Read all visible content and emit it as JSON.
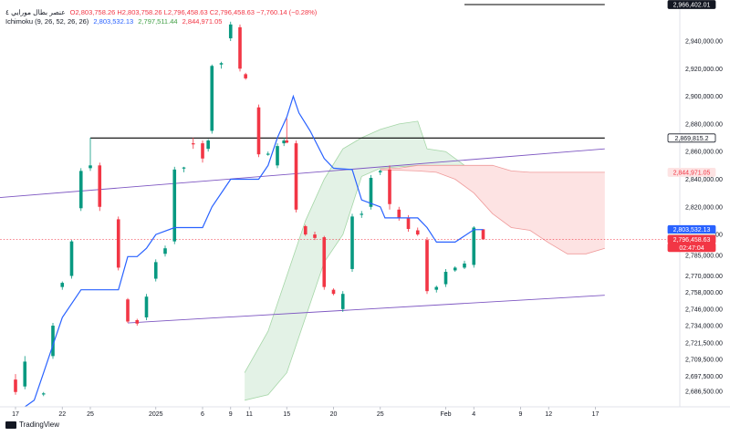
{
  "header": {
    "line1_title": "عنصر بطال مورايي ٤",
    "line1_values": "O2,803,758.26  H2,803,758.26  L2,796,458.63  C2,796,458.63  −7,760.14 (−0.28%)",
    "line2_name": "Ichimoku (9, 26, 52, 26, 26)",
    "line2_v1": "2,803,532.13",
    "line2_v2": "2,797,511.44",
    "line2_v3": "2,844,971.05"
  },
  "branding": {
    "logo_text": "TradingView"
  },
  "colors": {
    "up": "#089981",
    "down": "#f23645",
    "base_line": "#2962ff",
    "cloud_green": "#e3f2e6",
    "cloud_red": "#fde3e3",
    "trend_line": "#7e57c2",
    "horizontal": "#000000"
  },
  "chart_data": {
    "type": "candlestick",
    "ylim": [
      2680000,
      2970000
    ],
    "y_ticks": [
      2686500,
      2697500,
      2709500,
      2721500,
      2734000,
      2746000,
      2758000,
      2770000,
      2785000,
      2800000,
      2820000,
      2840000,
      2860000,
      2880000,
      2900000,
      2920000,
      2940000
    ],
    "y_tick_labels": [
      "2,686,500.00",
      "2,697,500.00",
      "2,709,500.00",
      "2,721,500.00",
      "2,734,000.00",
      "2,746,000.00",
      "2,758,000.00",
      "2,770,000.00",
      "2,785,000.00",
      "2,800,000.00",
      "2,820,000.00",
      "2,840,000.00",
      "2,860,000.00",
      "2,880,000.00",
      "2,900,000.00",
      "2,920,000.00",
      "2,940,000.00"
    ],
    "x_ticks": [
      {
        "label": "17",
        "day": 17
      },
      {
        "label": "22",
        "day": 22
      },
      {
        "label": "25",
        "day": 25
      },
      {
        "label": "2025",
        "day": 32
      },
      {
        "label": "6",
        "day": 37
      },
      {
        "label": "9",
        "day": 40
      },
      {
        "label": "11",
        "day": 42
      },
      {
        "label": "15",
        "day": 46
      },
      {
        "label": "20",
        "day": 51
      },
      {
        "label": "25",
        "day": 56
      },
      {
        "label": "Feb",
        "day": 63
      },
      {
        "label": "4",
        "day": 66
      },
      {
        "label": "9",
        "day": 71
      },
      {
        "label": "12",
        "day": 74
      },
      {
        "label": "17",
        "day": 79
      }
    ],
    "price_tags": [
      {
        "label": "2,966,402.01",
        "value": 2966402,
        "bg": "#131722",
        "fg": "#ffffff",
        "border": "#131722"
      },
      {
        "label": "2,869,815.2",
        "value": 2869815,
        "bg": "#ffffff",
        "fg": "#131722",
        "border": "#131722"
      },
      {
        "label": "2,844,971.05",
        "value": 2844971,
        "bg": "#fde3e3",
        "fg": "#f23645",
        "border": "#fde3e3"
      },
      {
        "label": "2,803,532.13",
        "value": 2803532,
        "bg": "#2962ff",
        "fg": "#ffffff",
        "border": "#2962ff"
      },
      {
        "label": "2,797,511.44",
        "value": 2797511,
        "bg": "#e3f2e6",
        "fg": "#131722",
        "border": "#e3f2e6"
      },
      {
        "label": "2,796,458.63",
        "value": 2796458,
        "bg": "#f23645",
        "fg": "#ffffff",
        "border": "#f23645"
      },
      {
        "label": "02:47:04",
        "value": 2790600,
        "bg": "#f23645",
        "fg": "#ffffff",
        "border": "#f23645"
      }
    ],
    "candles": [
      {
        "d": 17,
        "o": 2695000,
        "h": 2699000,
        "l": 2684000,
        "c": 2686000
      },
      {
        "d": 18,
        "o": 2690000,
        "h": 2712000,
        "l": 2688000,
        "c": 2708000
      },
      {
        "d": 20,
        "o": 2684500,
        "h": 2686000,
        "l": 2683000,
        "c": 2685000
      },
      {
        "d": 21,
        "o": 2712000,
        "h": 2736000,
        "l": 2710000,
        "c": 2734000
      },
      {
        "d": 22,
        "o": 2762000,
        "h": 2766000,
        "l": 2760000,
        "c": 2765000
      },
      {
        "d": 23,
        "o": 2770000,
        "h": 2796000,
        "l": 2768000,
        "c": 2795000
      },
      {
        "d": 24,
        "o": 2819000,
        "h": 2848000,
        "l": 2817000,
        "c": 2846000
      },
      {
        "d": 25,
        "o": 2848000,
        "h": 2870000,
        "l": 2846000,
        "c": 2850000
      },
      {
        "d": 26,
        "o": 2850000,
        "h": 2852000,
        "l": 2817000,
        "c": 2820000
      },
      {
        "d": 28,
        "o": 2811000,
        "h": 2813000,
        "l": 2774000,
        "c": 2776000
      },
      {
        "d": 29,
        "o": 2753000,
        "h": 2754000,
        "l": 2736000,
        "c": 2737000
      },
      {
        "d": 30,
        "o": 2738000,
        "h": 2739000,
        "l": 2734000,
        "c": 2735500
      },
      {
        "d": 31,
        "o": 2740000,
        "h": 2757000,
        "l": 2738000,
        "c": 2755000
      },
      {
        "d": 32,
        "o": 2768000,
        "h": 2782000,
        "l": 2766000,
        "c": 2780000
      },
      {
        "d": 33,
        "o": 2786000,
        "h": 2792000,
        "l": 2784000,
        "c": 2790000
      },
      {
        "d": 34,
        "o": 2795000,
        "h": 2849000,
        "l": 2793000,
        "c": 2847000
      },
      {
        "d": 35,
        "o": 2848000,
        "h": 2849000,
        "l": 2845000,
        "c": 2848500
      },
      {
        "d": 36,
        "o": 2866000,
        "h": 2870000,
        "l": 2862000,
        "c": 2865500
      },
      {
        "d": 37,
        "o": 2866000,
        "h": 2868000,
        "l": 2852000,
        "c": 2855000
      },
      {
        "d": 37.6,
        "o": 2862000,
        "h": 2869000,
        "l": 2860000,
        "c": 2868000
      },
      {
        "d": 38,
        "o": 2875000,
        "h": 2923000,
        "l": 2873000,
        "c": 2922000
      },
      {
        "d": 39,
        "o": 2923000,
        "h": 2925000,
        "l": 2920000,
        "c": 2924000
      },
      {
        "d": 40,
        "o": 2942000,
        "h": 2954000,
        "l": 2940000,
        "c": 2952000
      },
      {
        "d": 41,
        "o": 2950000,
        "h": 2952000,
        "l": 2918000,
        "c": 2920000
      },
      {
        "d": 41.6,
        "o": 2916000,
        "h": 2917000,
        "l": 2912000,
        "c": 2913000
      },
      {
        "d": 43,
        "o": 2892000,
        "h": 2894000,
        "l": 2856000,
        "c": 2858000
      },
      {
        "d": 44,
        "o": 2858000,
        "h": 2860000,
        "l": 2857000,
        "c": 2858500
      },
      {
        "d": 45,
        "o": 2850000,
        "h": 2866000,
        "l": 2848000,
        "c": 2864000
      },
      {
        "d": 45.7,
        "o": 2866000,
        "h": 2870000,
        "l": 2864000,
        "c": 2868000
      },
      {
        "d": 46,
        "o": 2868000,
        "h": 2884000,
        "l": 2866000,
        "c": 2866500
      },
      {
        "d": 47,
        "o": 2866000,
        "h": 2868000,
        "l": 2816000,
        "c": 2818000
      },
      {
        "d": 48,
        "o": 2806000,
        "h": 2807000,
        "l": 2799000,
        "c": 2800000
      },
      {
        "d": 49,
        "o": 2800000,
        "h": 2802000,
        "l": 2796000,
        "c": 2797500
      },
      {
        "d": 50,
        "o": 2798000,
        "h": 2799000,
        "l": 2760000,
        "c": 2762000
      },
      {
        "d": 51,
        "o": 2760000,
        "h": 2761000,
        "l": 2756000,
        "c": 2757000
      },
      {
        "d": 52,
        "o": 2746000,
        "h": 2759000,
        "l": 2744000,
        "c": 2757000
      },
      {
        "d": 53,
        "o": 2775000,
        "h": 2815000,
        "l": 2773000,
        "c": 2813000
      },
      {
        "d": 54,
        "o": 2815000,
        "h": 2817000,
        "l": 2812000,
        "c": 2815000
      },
      {
        "d": 55,
        "o": 2820000,
        "h": 2843000,
        "l": 2818000,
        "c": 2841000
      },
      {
        "d": 56,
        "o": 2845000,
        "h": 2847000,
        "l": 2843000,
        "c": 2846000
      },
      {
        "d": 57,
        "o": 2847000,
        "h": 2850000,
        "l": 2818000,
        "c": 2822000
      },
      {
        "d": 58,
        "o": 2818000,
        "h": 2820000,
        "l": 2810000,
        "c": 2812000
      },
      {
        "d": 59,
        "o": 2812000,
        "h": 2814000,
        "l": 2802000,
        "c": 2804000
      },
      {
        "d": 60,
        "o": 2803000,
        "h": 2805000,
        "l": 2799000,
        "c": 2800000
      },
      {
        "d": 61,
        "o": 2796000,
        "h": 2798000,
        "l": 2757000,
        "c": 2759000
      },
      {
        "d": 62,
        "o": 2760000,
        "h": 2763000,
        "l": 2758000,
        "c": 2762000
      },
      {
        "d": 63,
        "o": 2764000,
        "h": 2775000,
        "l": 2762000,
        "c": 2773000
      },
      {
        "d": 64,
        "o": 2774000,
        "h": 2777000,
        "l": 2773000,
        "c": 2776000
      },
      {
        "d": 65,
        "o": 2776000,
        "h": 2781000,
        "l": 2775000,
        "c": 2779000
      },
      {
        "d": 66,
        "o": 2778000,
        "h": 2806000,
        "l": 2776000,
        "c": 2805000
      },
      {
        "d": 67,
        "o": 2803758,
        "h": 2803758,
        "l": 2796458,
        "c": 2796458
      }
    ],
    "base_line": [
      {
        "d": 18,
        "v": 2660000
      },
      {
        "d": 19,
        "v": 2680000
      },
      {
        "d": 20,
        "v": 2700000
      },
      {
        "d": 21,
        "v": 2720000
      },
      {
        "d": 22,
        "v": 2740000
      },
      {
        "d": 24,
        "v": 2760000
      },
      {
        "d": 28,
        "v": 2760000
      },
      {
        "d": 29,
        "v": 2784000
      },
      {
        "d": 30,
        "v": 2784000
      },
      {
        "d": 31,
        "v": 2790000
      },
      {
        "d": 32,
        "v": 2800000
      },
      {
        "d": 34,
        "v": 2805000
      },
      {
        "d": 37,
        "v": 2805000
      },
      {
        "d": 38,
        "v": 2820000
      },
      {
        "d": 40,
        "v": 2840000
      },
      {
        "d": 43,
        "v": 2840000
      },
      {
        "d": 44,
        "v": 2850000
      },
      {
        "d": 45,
        "v": 2870000
      },
      {
        "d": 46,
        "v": 2885000
      },
      {
        "d": 46.7,
        "v": 2900000
      },
      {
        "d": 47.3,
        "v": 2888000
      },
      {
        "d": 48.5,
        "v": 2875000
      },
      {
        "d": 50,
        "v": 2855000
      },
      {
        "d": 51,
        "v": 2848000
      },
      {
        "d": 53,
        "v": 2847000
      },
      {
        "d": 54,
        "v": 2825000
      },
      {
        "d": 56,
        "v": 2820000
      },
      {
        "d": 56.5,
        "v": 2812000
      },
      {
        "d": 60,
        "v": 2812000
      },
      {
        "d": 61,
        "v": 2805000
      },
      {
        "d": 62,
        "v": 2794500
      },
      {
        "d": 64,
        "v": 2794500
      },
      {
        "d": 66,
        "v": 2803500
      },
      {
        "d": 67,
        "v": 2803532
      }
    ],
    "cloud_green": {
      "upper": [
        {
          "d": 41.5,
          "v": 2700000
        },
        {
          "d": 44,
          "v": 2730000
        },
        {
          "d": 46,
          "v": 2770000
        },
        {
          "d": 48,
          "v": 2810000
        },
        {
          "d": 50,
          "v": 2840000
        },
        {
          "d": 52,
          "v": 2862000
        },
        {
          "d": 54,
          "v": 2870000
        },
        {
          "d": 56,
          "v": 2876000
        },
        {
          "d": 58,
          "v": 2880000
        },
        {
          "d": 60,
          "v": 2882000
        },
        {
          "d": 61,
          "v": 2862000
        },
        {
          "d": 63,
          "v": 2860000
        },
        {
          "d": 65,
          "v": 2850000
        }
      ],
      "lower": [
        {
          "d": 65,
          "v": 2850000
        },
        {
          "d": 63,
          "v": 2850000
        },
        {
          "d": 60,
          "v": 2850000
        },
        {
          "d": 58,
          "v": 2849000
        },
        {
          "d": 56,
          "v": 2848000
        },
        {
          "d": 54,
          "v": 2842000
        },
        {
          "d": 52,
          "v": 2800000
        },
        {
          "d": 50,
          "v": 2780000
        },
        {
          "d": 48,
          "v": 2740000
        },
        {
          "d": 46,
          "v": 2700000
        },
        {
          "d": 44,
          "v": 2684000
        },
        {
          "d": 41.5,
          "v": 2680000
        }
      ]
    },
    "cloud_red": {
      "upper": [
        {
          "d": 56,
          "v": 2847500
        },
        {
          "d": 58,
          "v": 2848000
        },
        {
          "d": 60,
          "v": 2850000
        },
        {
          "d": 65,
          "v": 2850000
        },
        {
          "d": 68,
          "v": 2850000
        },
        {
          "d": 70,
          "v": 2846000
        },
        {
          "d": 72,
          "v": 2845000
        },
        {
          "d": 75,
          "v": 2845000
        },
        {
          "d": 78,
          "v": 2845000
        },
        {
          "d": 80,
          "v": 2845000
        }
      ],
      "lower": [
        {
          "d": 80,
          "v": 2790000
        },
        {
          "d": 78,
          "v": 2786000
        },
        {
          "d": 76,
          "v": 2786000
        },
        {
          "d": 74,
          "v": 2794000
        },
        {
          "d": 72,
          "v": 2803000
        },
        {
          "d": 70,
          "v": 2805000
        },
        {
          "d": 68,
          "v": 2815000
        },
        {
          "d": 66,
          "v": 2830000
        },
        {
          "d": 64,
          "v": 2840000
        },
        {
          "d": 62,
          "v": 2845000
        },
        {
          "d": 60,
          "v": 2846000
        },
        {
          "d": 58,
          "v": 2846500
        },
        {
          "d": 56,
          "v": 2846500
        }
      ]
    },
    "horizontal_lines": [
      {
        "value": 2869815,
        "from_day": 25,
        "to_day": 80
      },
      {
        "value": 2966402,
        "from_day": 65,
        "to_day": 80
      }
    ],
    "trend_lines": [
      {
        "d1": 14,
        "v1": 2826000,
        "d2": 80,
        "v2": 2862000
      },
      {
        "d1": 29,
        "v1": 2736000,
        "d2": 80,
        "v2": 2756000
      }
    ],
    "price_guide": {
      "value": 2796458,
      "from_day": 14,
      "to_day": 80
    }
  }
}
